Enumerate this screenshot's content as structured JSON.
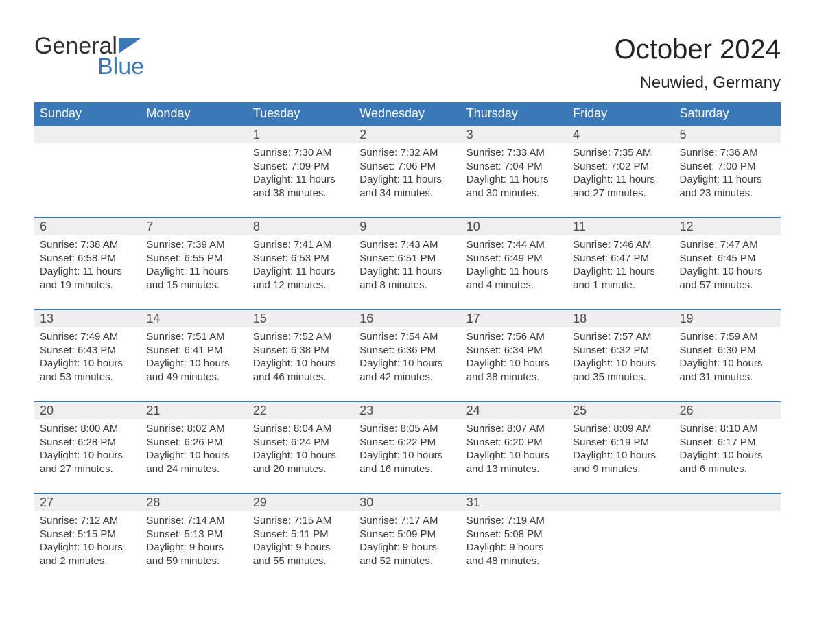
{
  "logo": {
    "word1": "General",
    "word2": "Blue"
  },
  "title": "October 2024",
  "location": "Neuwied, Germany",
  "colors": {
    "header_bg": "#3a78b8",
    "header_text": "#ffffff",
    "daynum_bg": "#efefef",
    "daynum_border": "#3a78b8",
    "body_text": "#3a3a3a",
    "title_text": "#242424",
    "logo_blue": "#3a78b8",
    "page_bg": "#ffffff"
  },
  "fonts": {
    "title_size_pt": 30,
    "location_size_pt": 18,
    "header_size_pt": 14,
    "daynum_size_pt": 14,
    "body_size_pt": 11
  },
  "weekdays": [
    "Sunday",
    "Monday",
    "Tuesday",
    "Wednesday",
    "Thursday",
    "Friday",
    "Saturday"
  ],
  "labels": {
    "sunrise": "Sunrise: ",
    "sunset": "Sunset: ",
    "daylight": "Daylight: "
  },
  "weeks": [
    [
      null,
      null,
      {
        "day": "1",
        "sunrise": "7:30 AM",
        "sunset": "7:09 PM",
        "daylight": "11 hours and 38 minutes."
      },
      {
        "day": "2",
        "sunrise": "7:32 AM",
        "sunset": "7:06 PM",
        "daylight": "11 hours and 34 minutes."
      },
      {
        "day": "3",
        "sunrise": "7:33 AM",
        "sunset": "7:04 PM",
        "daylight": "11 hours and 30 minutes."
      },
      {
        "day": "4",
        "sunrise": "7:35 AM",
        "sunset": "7:02 PM",
        "daylight": "11 hours and 27 minutes."
      },
      {
        "day": "5",
        "sunrise": "7:36 AM",
        "sunset": "7:00 PM",
        "daylight": "11 hours and 23 minutes."
      }
    ],
    [
      {
        "day": "6",
        "sunrise": "7:38 AM",
        "sunset": "6:58 PM",
        "daylight": "11 hours and 19 minutes."
      },
      {
        "day": "7",
        "sunrise": "7:39 AM",
        "sunset": "6:55 PM",
        "daylight": "11 hours and 15 minutes."
      },
      {
        "day": "8",
        "sunrise": "7:41 AM",
        "sunset": "6:53 PM",
        "daylight": "11 hours and 12 minutes."
      },
      {
        "day": "9",
        "sunrise": "7:43 AM",
        "sunset": "6:51 PM",
        "daylight": "11 hours and 8 minutes."
      },
      {
        "day": "10",
        "sunrise": "7:44 AM",
        "sunset": "6:49 PM",
        "daylight": "11 hours and 4 minutes."
      },
      {
        "day": "11",
        "sunrise": "7:46 AM",
        "sunset": "6:47 PM",
        "daylight": "11 hours and 1 minute."
      },
      {
        "day": "12",
        "sunrise": "7:47 AM",
        "sunset": "6:45 PM",
        "daylight": "10 hours and 57 minutes."
      }
    ],
    [
      {
        "day": "13",
        "sunrise": "7:49 AM",
        "sunset": "6:43 PM",
        "daylight": "10 hours and 53 minutes."
      },
      {
        "day": "14",
        "sunrise": "7:51 AM",
        "sunset": "6:41 PM",
        "daylight": "10 hours and 49 minutes."
      },
      {
        "day": "15",
        "sunrise": "7:52 AM",
        "sunset": "6:38 PM",
        "daylight": "10 hours and 46 minutes."
      },
      {
        "day": "16",
        "sunrise": "7:54 AM",
        "sunset": "6:36 PM",
        "daylight": "10 hours and 42 minutes."
      },
      {
        "day": "17",
        "sunrise": "7:56 AM",
        "sunset": "6:34 PM",
        "daylight": "10 hours and 38 minutes."
      },
      {
        "day": "18",
        "sunrise": "7:57 AM",
        "sunset": "6:32 PM",
        "daylight": "10 hours and 35 minutes."
      },
      {
        "day": "19",
        "sunrise": "7:59 AM",
        "sunset": "6:30 PM",
        "daylight": "10 hours and 31 minutes."
      }
    ],
    [
      {
        "day": "20",
        "sunrise": "8:00 AM",
        "sunset": "6:28 PM",
        "daylight": "10 hours and 27 minutes."
      },
      {
        "day": "21",
        "sunrise": "8:02 AM",
        "sunset": "6:26 PM",
        "daylight": "10 hours and 24 minutes."
      },
      {
        "day": "22",
        "sunrise": "8:04 AM",
        "sunset": "6:24 PM",
        "daylight": "10 hours and 20 minutes."
      },
      {
        "day": "23",
        "sunrise": "8:05 AM",
        "sunset": "6:22 PM",
        "daylight": "10 hours and 16 minutes."
      },
      {
        "day": "24",
        "sunrise": "8:07 AM",
        "sunset": "6:20 PM",
        "daylight": "10 hours and 13 minutes."
      },
      {
        "day": "25",
        "sunrise": "8:09 AM",
        "sunset": "6:19 PM",
        "daylight": "10 hours and 9 minutes."
      },
      {
        "day": "26",
        "sunrise": "8:10 AM",
        "sunset": "6:17 PM",
        "daylight": "10 hours and 6 minutes."
      }
    ],
    [
      {
        "day": "27",
        "sunrise": "7:12 AM",
        "sunset": "5:15 PM",
        "daylight": "10 hours and 2 minutes."
      },
      {
        "day": "28",
        "sunrise": "7:14 AM",
        "sunset": "5:13 PM",
        "daylight": "9 hours and 59 minutes."
      },
      {
        "day": "29",
        "sunrise": "7:15 AM",
        "sunset": "5:11 PM",
        "daylight": "9 hours and 55 minutes."
      },
      {
        "day": "30",
        "sunrise": "7:17 AM",
        "sunset": "5:09 PM",
        "daylight": "9 hours and 52 minutes."
      },
      {
        "day": "31",
        "sunrise": "7:19 AM",
        "sunset": "5:08 PM",
        "daylight": "9 hours and 48 minutes."
      },
      null,
      null
    ]
  ]
}
